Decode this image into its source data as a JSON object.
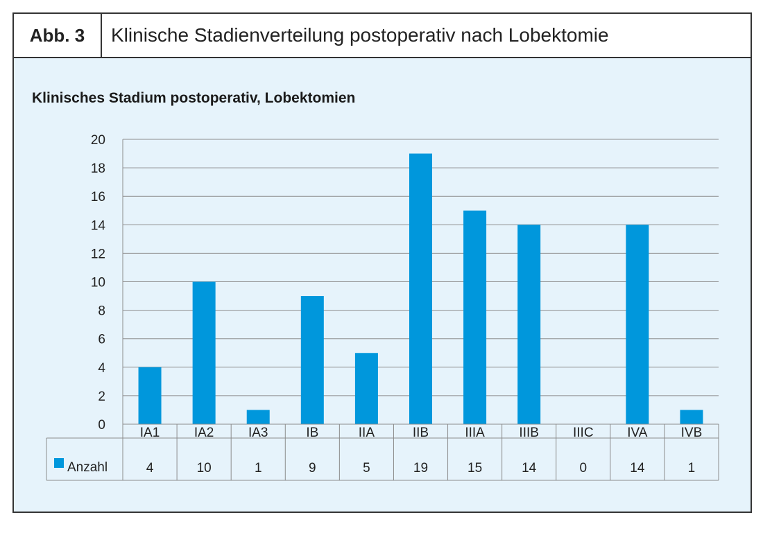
{
  "figure": {
    "label": "Abb. 3",
    "title": "Klinische Stadienverteilung postoperativ nach Lobektomie"
  },
  "colors": {
    "bar": "#0097dc",
    "grid": "#8c8c8c",
    "panel": "#e6f3fb"
  },
  "chart_data": {
    "type": "bar",
    "title": "Klinisches Stadium postoperativ, Lobektomien",
    "categories": [
      "IA1",
      "IA2",
      "IA3",
      "IB",
      "IIA",
      "IIB",
      "IIIA",
      "IIIB",
      "IIIC",
      "IVA",
      "IVB"
    ],
    "series": [
      {
        "name": "Anzahl",
        "values": [
          4,
          10,
          1,
          9,
          5,
          19,
          15,
          14,
          0,
          14,
          1
        ]
      }
    ],
    "ylim": [
      0,
      20
    ],
    "yticks": [
      0,
      2,
      4,
      6,
      8,
      10,
      12,
      14,
      16,
      18,
      20
    ],
    "grid": true,
    "data_table": true,
    "xlabel": "",
    "ylabel": ""
  }
}
